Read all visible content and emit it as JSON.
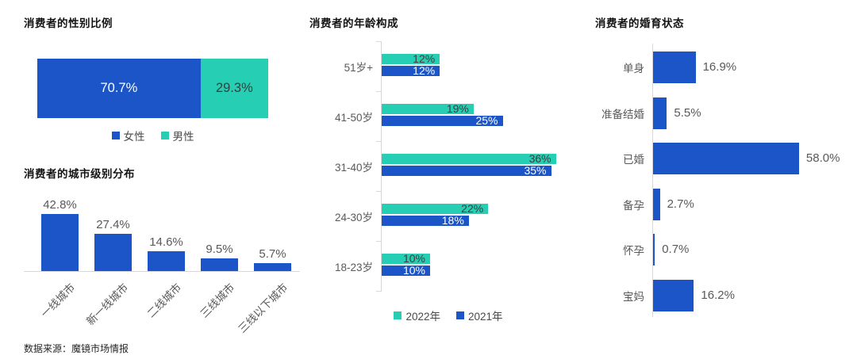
{
  "colors": {
    "blue": "#1b55c8",
    "teal": "#26ceb3",
    "axis_gray": "#d8d8d8",
    "label_gray": "#595959",
    "dark_text": "#3d3d3d",
    "white_text": "#ffffff",
    "title_color": "#141414"
  },
  "footer": {
    "source_label": "数据来源：魔镜市场情报"
  },
  "chart_data": [
    {
      "id": "gender",
      "type": "bar",
      "subtype": "stacked-horizontal",
      "title": "消费者的性别比例",
      "series": [
        {
          "name": "女性",
          "value": 70.7,
          "label": "70.7%",
          "color_key": "blue"
        },
        {
          "name": "男性",
          "value": 29.3,
          "label": "29.3%",
          "color_key": "teal"
        }
      ],
      "legend_position": "bottom",
      "xlim": [
        0,
        100
      ]
    },
    {
      "id": "city",
      "type": "bar",
      "subtype": "vertical",
      "title": "消费者的城市级别分布",
      "categories": [
        "一线城市",
        "新一线城市",
        "二线城市",
        "三线城市",
        "三线以下城市"
      ],
      "values": [
        42.8,
        27.4,
        14.6,
        9.5,
        5.7
      ],
      "labels": [
        "42.8%",
        "27.4%",
        "14.6%",
        "9.5%",
        "5.7%"
      ],
      "ylim": [
        0,
        45
      ],
      "grid": false
    },
    {
      "id": "age",
      "type": "bar",
      "subtype": "grouped-horizontal",
      "title": "消费者的年龄构成",
      "categories": [
        "51岁+",
        "41-50岁",
        "31-40岁",
        "24-30岁",
        "18-23岁"
      ],
      "series": [
        {
          "name": "2022年",
          "color_key": "teal",
          "values": [
            12,
            19,
            36,
            22,
            10
          ],
          "labels": [
            "12%",
            "19%",
            "36%",
            "22%",
            "10%"
          ]
        },
        {
          "name": "2021年",
          "color_key": "blue",
          "values": [
            12,
            25,
            35,
            18,
            10
          ],
          "labels": [
            "12%",
            "25%",
            "35%",
            "18%",
            "10%"
          ]
        }
      ],
      "legend_position": "bottom",
      "xlim": [
        0,
        40
      ],
      "grid": false
    },
    {
      "id": "marital",
      "type": "bar",
      "subtype": "horizontal",
      "title": "消费者的婚育状态",
      "categories": [
        "单身",
        "准备结婚",
        "已婚",
        "备孕",
        "怀孕",
        "宝妈"
      ],
      "values": [
        16.9,
        5.5,
        58.0,
        2.7,
        0.7,
        16.2
      ],
      "labels": [
        "16.9%",
        "5.5%",
        "58.0%",
        "2.7%",
        "0.7%",
        "16.2%"
      ],
      "xlim": [
        0,
        65
      ],
      "grid": false
    }
  ]
}
